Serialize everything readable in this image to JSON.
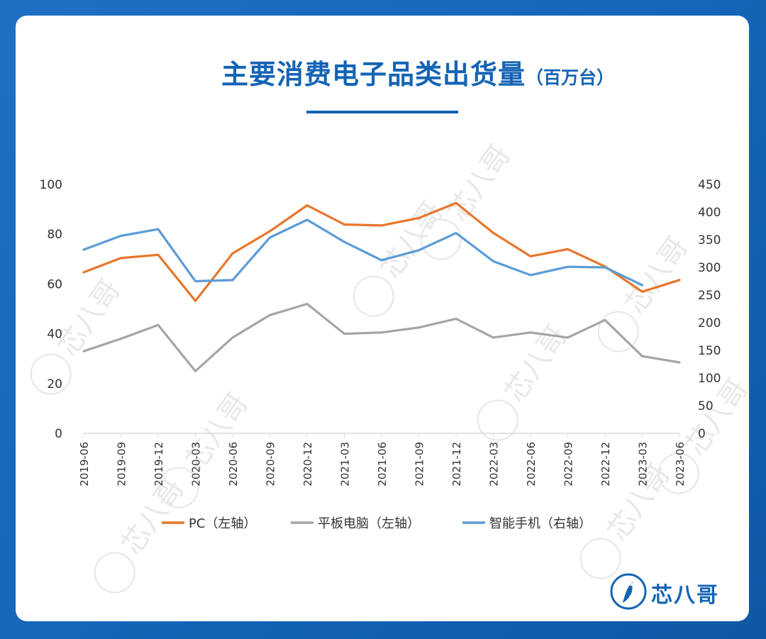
{
  "header": {
    "title": "主要消费电子品类出货量",
    "unit": "（百万台）"
  },
  "brand": {
    "logo_text": "芯八哥",
    "watermark_text": "芯八哥"
  },
  "colors": {
    "pc": "#e8762c",
    "tablet": "#a5a5a5",
    "phone": "#5b9bd5",
    "title": "#1464b4"
  },
  "chart_data": {
    "type": "line",
    "title": "主要消费电子品类出货量（百万台）",
    "categories": [
      "2019-06",
      "2019-09",
      "2019-12",
      "2020-03",
      "2020-06",
      "2020-09",
      "2020-12",
      "2021-03",
      "2021-06",
      "2021-09",
      "2021-12",
      "2022-03",
      "2022-06",
      "2022-09",
      "2022-12",
      "2023-03",
      "2023-06"
    ],
    "y_left": {
      "min": 0,
      "max": 100,
      "ticks": [
        "0",
        "20",
        "40",
        "60",
        "80",
        "100"
      ]
    },
    "y_right": {
      "min": 0,
      "max": 450,
      "ticks": [
        "0",
        "50",
        "100",
        "150",
        "200",
        "250",
        "300",
        "350",
        "400",
        "450"
      ]
    },
    "legend_position": "bottom",
    "grid": false,
    "series": [
      {
        "name": "PC（左轴）",
        "axis": "left",
        "values": [
          64.7,
          70.4,
          71.7,
          53.2,
          72.3,
          81.2,
          91.6,
          83.9,
          83.5,
          86.5,
          92.5,
          80.5,
          71.1,
          74.0,
          67.0,
          56.9,
          61.6
        ]
      },
      {
        "name": "平板电脑（左轴）",
        "axis": "left",
        "values": [
          33.0,
          38.0,
          43.5,
          25.0,
          38.5,
          47.5,
          52.0,
          40.0,
          40.5,
          42.5,
          46.0,
          38.5,
          40.5,
          38.5,
          45.5,
          31.0,
          28.5
        ]
      },
      {
        "name": "智能手机（右轴）",
        "axis": "right",
        "values": [
          332,
          357,
          369,
          275,
          277,
          354,
          386,
          346,
          313,
          331,
          362,
          311,
          286,
          301,
          300,
          268,
          null
        ]
      }
    ]
  }
}
